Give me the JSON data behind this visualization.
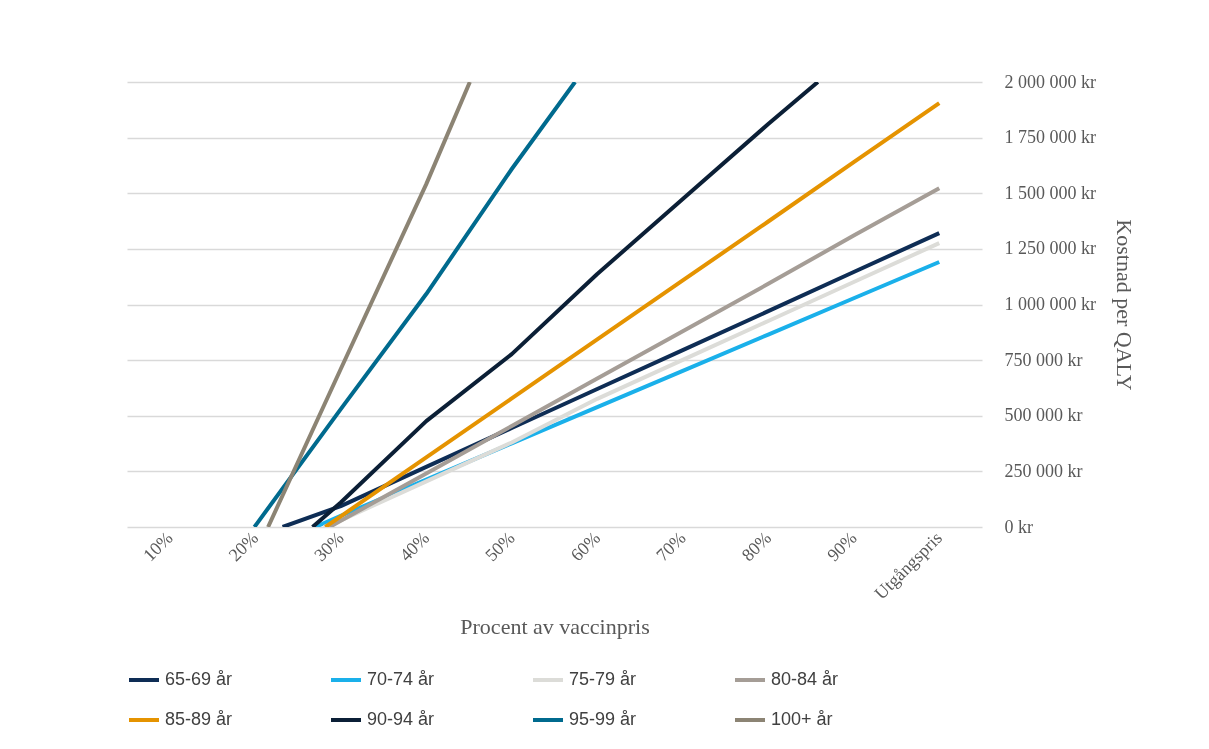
{
  "chart_data": {
    "type": "line",
    "xlabel": "Procent av vaccinpris",
    "ylabel": "Kostnad per QALY",
    "xlim": [
      5,
      105
    ],
    "xticks": [
      {
        "value": 10,
        "label": "10%"
      },
      {
        "value": 20,
        "label": "20%"
      },
      {
        "value": 30,
        "label": "30%"
      },
      {
        "value": 40,
        "label": "40%"
      },
      {
        "value": 50,
        "label": "50%"
      },
      {
        "value": 60,
        "label": "60%"
      },
      {
        "value": 70,
        "label": "70%"
      },
      {
        "value": 80,
        "label": "80%"
      },
      {
        "value": 90,
        "label": "90%"
      },
      {
        "value": 100,
        "label": "Utgångspris"
      }
    ],
    "ylim": [
      0,
      2000000
    ],
    "yticks": [
      {
        "value": 0,
        "label": "0 kr"
      },
      {
        "value": 250000,
        "label": "250 000 kr"
      },
      {
        "value": 500000,
        "label": "500 000 kr"
      },
      {
        "value": 750000,
        "label": "750 000 kr"
      },
      {
        "value": 1000000,
        "label": "1 000 000 kr"
      },
      {
        "value": 1250000,
        "label": "1 250 000 kr"
      },
      {
        "value": 1500000,
        "label": "1 500 000 kr"
      },
      {
        "value": 1750000,
        "label": "1 750 000 kr"
      },
      {
        "value": 2000000,
        "label": "2 000 000 kr"
      }
    ],
    "grid": "y",
    "legend": "bottom",
    "marker": "none",
    "line_style": "solid",
    "series": [
      {
        "name": "65-69 år",
        "color": "#0e2d55",
        "x": [
          23.2,
          30,
          40,
          50,
          60,
          70,
          80,
          90,
          100
        ],
        "values": [
          0,
          94000,
          270000,
          445000,
          620000,
          795000,
          970000,
          1146000,
          1321000
        ]
      },
      {
        "name": "70-74 år",
        "color": "#1ab0ea",
        "x": [
          27,
          30,
          40,
          50,
          60,
          70,
          80,
          90,
          100
        ],
        "values": [
          0,
          50000,
          213000,
          376000,
          539000,
          702000,
          865000,
          1028000,
          1191000
        ]
      },
      {
        "name": "75-79 år",
        "color": "#dcdcd8",
        "x": [
          28,
          30,
          40,
          50,
          60,
          70,
          80,
          90,
          100
        ],
        "values": [
          0,
          30000,
          205000,
          380000,
          576000,
          751000,
          926000,
          1101000,
          1276000
        ]
      },
      {
        "name": "80-84 år",
        "color": "#a59d96",
        "x": [
          28.7,
          30,
          40,
          50,
          60,
          70,
          80,
          90,
          100
        ],
        "values": [
          0,
          28000,
          241000,
          454000,
          667000,
          880000,
          1093000,
          1310000,
          1523000
        ]
      },
      {
        "name": "85-89 år",
        "color": "#e59300",
        "x": [
          28.2,
          30,
          40,
          50,
          60,
          70,
          80,
          90,
          100
        ],
        "values": [
          0,
          48000,
          313000,
          578000,
          843000,
          1108000,
          1373000,
          1640000,
          1905000
        ]
      },
      {
        "name": "90-94 år",
        "color": "#0b1f36",
        "x": [
          26.7,
          30,
          40,
          50,
          60,
          70,
          80,
          85.8
        ],
        "values": [
          0,
          110000,
          476000,
          777000,
          1137000,
          1474000,
          1811000,
          2000000
        ]
      },
      {
        "name": "95-99 år",
        "color": "#006a8e",
        "x": [
          19.9,
          30,
          40,
          50,
          57.4
        ],
        "values": [
          0,
          530000,
          1047000,
          1609000,
          2000000
        ]
      },
      {
        "name": "100+ år",
        "color": "#8c8474",
        "x": [
          21.5,
          30,
          40,
          45.1
        ],
        "values": [
          0,
          710000,
          1541000,
          2000000
        ]
      }
    ]
  }
}
